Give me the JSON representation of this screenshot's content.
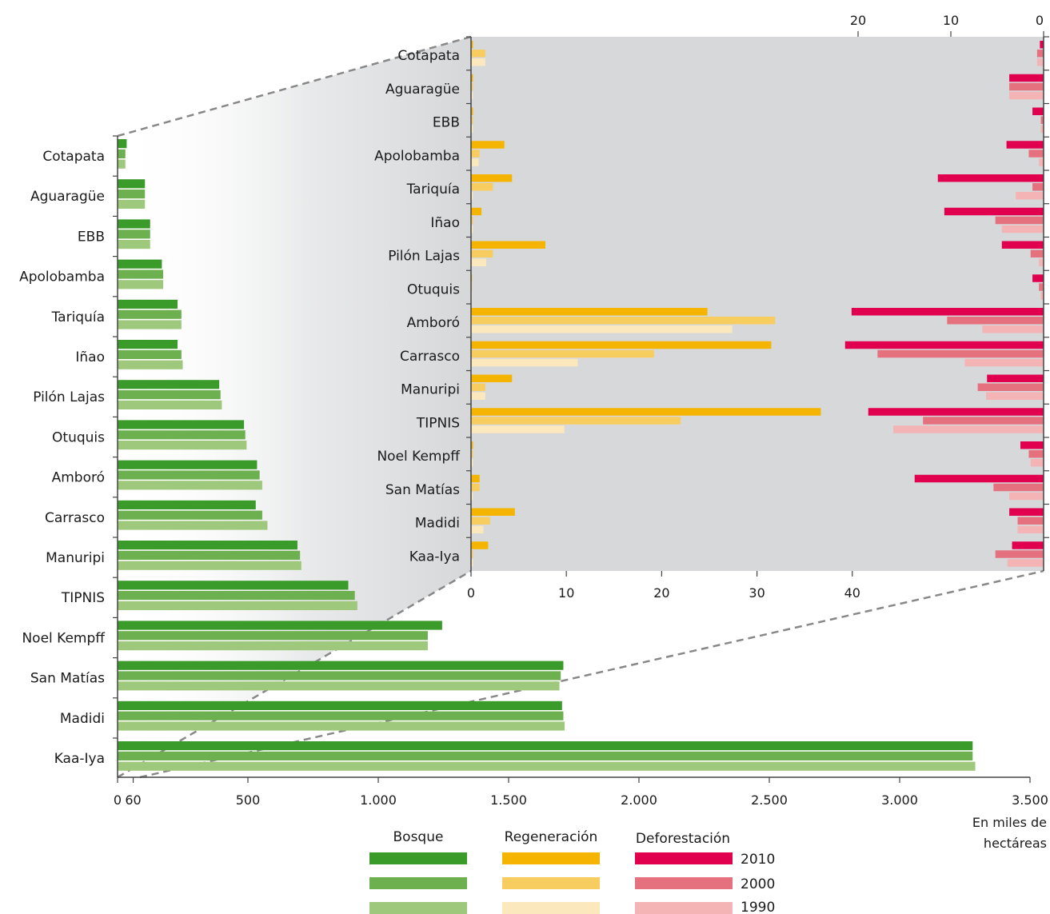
{
  "chart_data": [
    {
      "type": "bar",
      "orientation": "horizontal",
      "categories": [
        "Cotapata",
        "Aguaragüe",
        "EBB",
        "Apolobamba",
        "Tariquía",
        "Iñao",
        "Pilón Lajas",
        "Otuquis",
        "Amboró",
        "Carrasco",
        "Manuripi",
        "TIPNIS",
        "Noel Kempff",
        "San Matías",
        "Madidi",
        "Kaa-Iya"
      ],
      "legend_title": "Bosque",
      "series": [
        {
          "name": "2010",
          "color": "#3a9a2a",
          "values": [
            35,
            105,
            125,
            170,
            230,
            230,
            390,
            485,
            535,
            530,
            690,
            885,
            1245,
            1710,
            1705,
            3280
          ]
        },
        {
          "name": "2000",
          "color": "#6db04f",
          "values": [
            30,
            105,
            125,
            175,
            245,
            245,
            395,
            490,
            545,
            555,
            700,
            910,
            1190,
            1700,
            1710,
            3280
          ]
        },
        {
          "name": "1990",
          "color": "#9ec97c",
          "values": [
            30,
            105,
            125,
            175,
            245,
            250,
            400,
            495,
            555,
            575,
            705,
            920,
            1190,
            1695,
            1715,
            3290
          ]
        }
      ],
      "xlim": [
        0,
        3500
      ],
      "xticks": [
        "0",
        "60",
        "500",
        "1.000",
        "1.500",
        "2.000",
        "2.500",
        "3.000",
        "3.500"
      ],
      "xtick_values": [
        0,
        60,
        500,
        1000,
        1500,
        2000,
        2500,
        3000,
        3500
      ],
      "unit_label": [
        "En miles de",
        "hectáreas"
      ]
    },
    {
      "type": "bar",
      "orientation": "horizontal",
      "categories": [
        "Cotapata",
        "Aguaragüe",
        "EBB",
        "Apolobamba",
        "Tariquía",
        "Iñao",
        "Pilón Lajas",
        "Otuquis",
        "Amboró",
        "Carrasco",
        "Manuripi",
        "TIPNIS",
        "Noel Kempff",
        "San Matías",
        "Madidi",
        "Kaa-Iya"
      ],
      "legend_title": "Regeneración",
      "series": [
        {
          "name": "2010",
          "color": "#f5b400",
          "values": [
            0.2,
            0.2,
            0.2,
            3.5,
            4.3,
            1.1,
            7.8,
            0.1,
            24.8,
            31.5,
            4.3,
            36.7,
            0.2,
            0.9,
            4.6,
            1.8
          ]
        },
        {
          "name": "2000",
          "color": "#f8cd60",
          "values": [
            1.5,
            0.2,
            0.2,
            0.9,
            2.3,
            0.2,
            2.3,
            0.1,
            31.9,
            19.2,
            1.5,
            22.0,
            0.2,
            0.9,
            2.0,
            0.2
          ]
        },
        {
          "name": "1990",
          "color": "#fbe8bd",
          "values": [
            1.5,
            0.2,
            0.2,
            0.8,
            0.2,
            0.2,
            1.6,
            0.1,
            27.4,
            11.2,
            1.5,
            9.8,
            0.2,
            0.2,
            1.3,
            0.2
          ]
        }
      ],
      "xlim": [
        0,
        60
      ],
      "xticks": [
        "0",
        "10",
        "20",
        "30",
        "40"
      ],
      "xtick_values": [
        0,
        10,
        20,
        30,
        40
      ]
    },
    {
      "type": "bar",
      "orientation": "horizontal",
      "direction": "right-to-left",
      "categories": [
        "Cotapata",
        "Aguaragüe",
        "EBB",
        "Apolobamba",
        "Tariquía",
        "Iñao",
        "Pilón Lajas",
        "Otuquis",
        "Amboró",
        "Carrasco",
        "Manuripi",
        "TIPNIS",
        "Noel Kempff",
        "San Matías",
        "Madidi",
        "Kaa-Iya"
      ],
      "legend_title": "Deforestación",
      "series": [
        {
          "name": "2010",
          "color": "#e0004d",
          "values": [
            0.4,
            3.7,
            1.2,
            4.0,
            11.4,
            10.7,
            4.5,
            1.2,
            20.7,
            21.4,
            6.1,
            18.9,
            2.5,
            13.9,
            3.7,
            3.4
          ]
        },
        {
          "name": "2000",
          "color": "#e5707e",
          "values": [
            0.7,
            3.7,
            0.3,
            1.6,
            1.2,
            5.2,
            1.4,
            0.5,
            10.4,
            17.9,
            7.1,
            13.0,
            1.6,
            5.4,
            2.8,
            5.2
          ]
        },
        {
          "name": "1990",
          "color": "#f4b3b5",
          "values": [
            0.7,
            3.7,
            0.3,
            0.5,
            3.0,
            4.5,
            0.5,
            0.3,
            6.6,
            8.5,
            6.2,
            16.2,
            1.4,
            3.7,
            2.8,
            3.9
          ]
        }
      ],
      "xlim": [
        0,
        24
      ],
      "xticks": [
        "20",
        "10",
        "0"
      ],
      "xtick_values": [
        20,
        10,
        0
      ]
    }
  ],
  "legend": {
    "years": [
      "2010",
      "2000",
      "1990"
    ]
  }
}
